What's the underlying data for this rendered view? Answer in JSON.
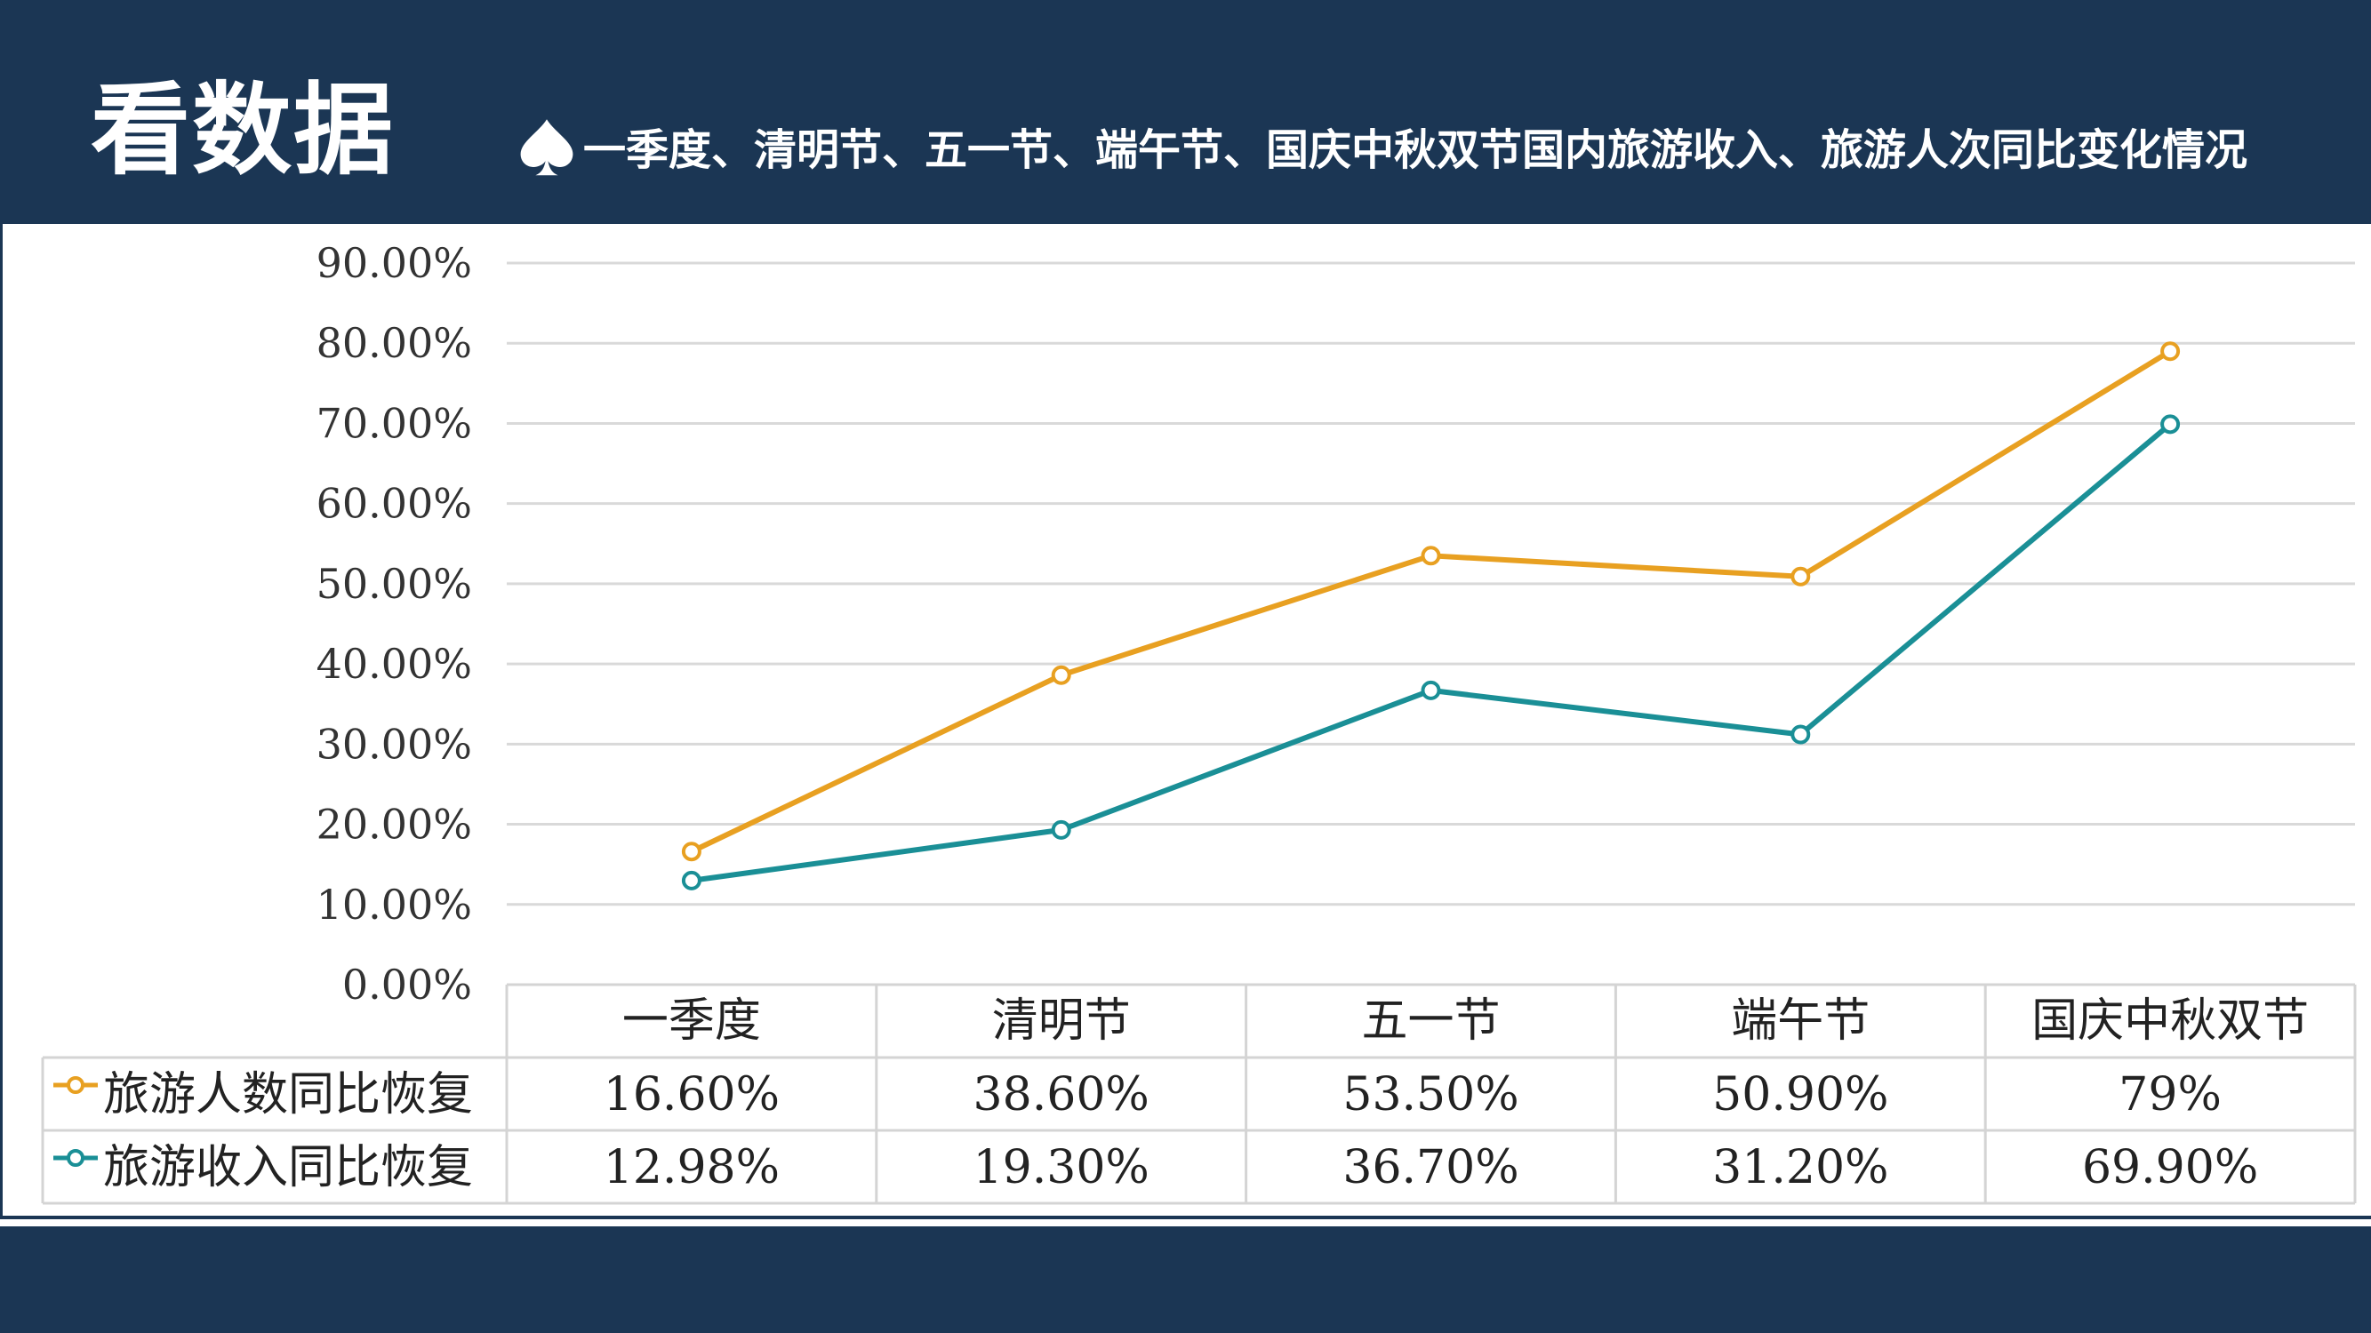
{
  "header": {
    "title": "看数据",
    "subtitle": "一季度、清明节、五一节、端午节、国庆中秋双节国内旅游收入、旅游人次同比变化情况",
    "bg_color": "#1b3654",
    "bullet_icon": "spade-icon"
  },
  "chart_data": {
    "type": "line",
    "categories": [
      "一季度",
      "清明节",
      "五一节",
      "端午节",
      "国庆中秋双节"
    ],
    "series": [
      {
        "name": "旅游人数同比恢复",
        "values": [
          16.6,
          38.6,
          53.5,
          50.9,
          79
        ],
        "labels": [
          "16.60%",
          "38.60%",
          "53.50%",
          "50.90%",
          "79%"
        ],
        "color": "#e8a021"
      },
      {
        "name": "旅游收入同比恢复",
        "values": [
          12.98,
          19.3,
          36.7,
          31.2,
          69.9
        ],
        "labels": [
          "12.98%",
          "19.30%",
          "36.70%",
          "31.20%",
          "69.90%"
        ],
        "color": "#1a8f96"
      }
    ],
    "ylim": [
      0,
      90
    ],
    "yticks": [
      0,
      10,
      20,
      30,
      40,
      50,
      60,
      70,
      80,
      90
    ],
    "ytick_labels": [
      "0.00%",
      "10.00%",
      "20.00%",
      "30.00%",
      "40.00%",
      "50.00%",
      "60.00%",
      "70.00%",
      "80.00%",
      "90.00%"
    ],
    "grid": true,
    "data_table": true,
    "title": "",
    "xlabel": "",
    "ylabel": ""
  }
}
